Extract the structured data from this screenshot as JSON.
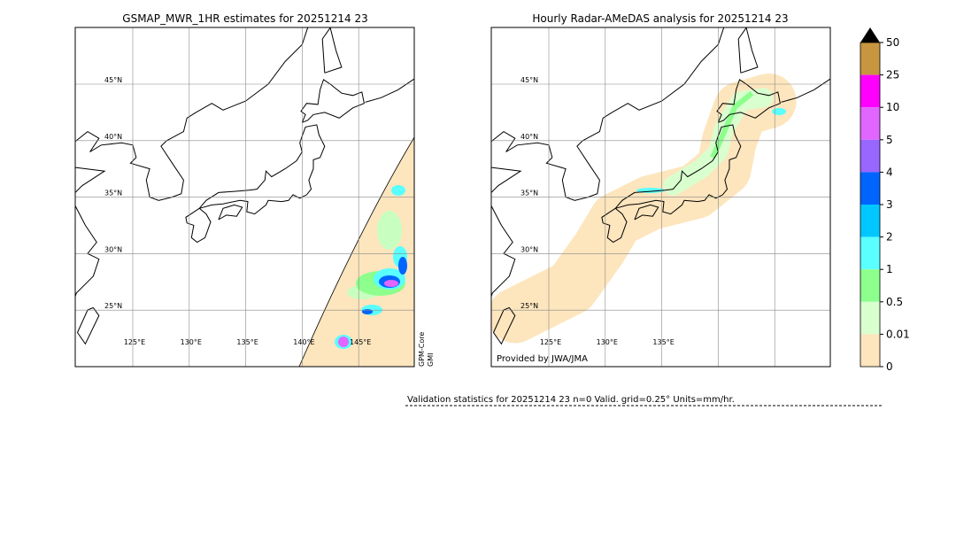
{
  "panels": [
    {
      "title": "GSMAP_MWR_1HR estimates for 20251214 23",
      "lat_labels": [
        "45°N",
        "40°N",
        "35°N",
        "30°N",
        "25°N"
      ],
      "lon_labels": [
        "125°E",
        "130°E",
        "135°E",
        "140°E",
        "145°E"
      ],
      "side_label": [
        "GPM-Core",
        "GMI"
      ]
    },
    {
      "title": "Hourly Radar-AMeDAS analysis for 20251214 23",
      "lat_labels": [
        "45°N",
        "40°N",
        "35°N",
        "30°N",
        "25°N"
      ],
      "lon_labels": [
        "125°E",
        "130°E",
        "135°E"
      ],
      "credit": "Provided by JWA/JMA"
    }
  ],
  "colorbar": {
    "labels": [
      50,
      25,
      10,
      5,
      4,
      3,
      2,
      1,
      0.5,
      0.01,
      0
    ]
  },
  "validation": "Validation statistics for 20251214 23  n=0 Valid. grid=0.25° Units=mm/hr."
}
